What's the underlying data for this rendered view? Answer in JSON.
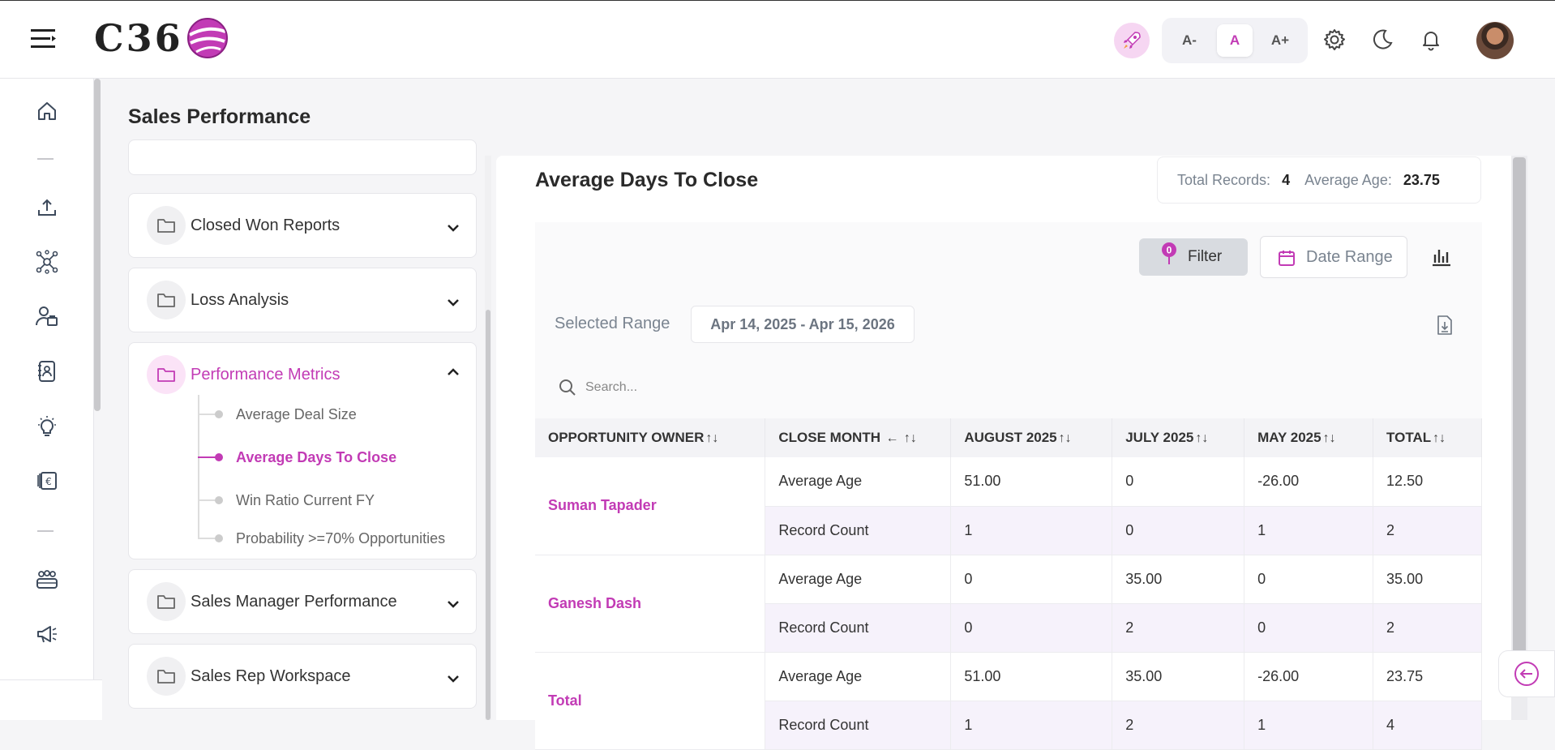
{
  "app": {
    "logo_text": "C36"
  },
  "header": {
    "font_small": "A-",
    "font_normal": "A",
    "font_large": "A+"
  },
  "page": {
    "title": "Sales Performance"
  },
  "menu": {
    "groups": [
      {
        "label": "Closed Won Reports"
      },
      {
        "label": "Loss Analysis"
      },
      {
        "label": "Performance Metrics"
      },
      {
        "label": "Sales Manager Performance"
      },
      {
        "label": "Sales Rep Workspace"
      }
    ],
    "sub_items": [
      {
        "label": "Average Deal Size"
      },
      {
        "label": "Average Days To Close"
      },
      {
        "label": "Win Ratio Current FY"
      },
      {
        "label": "Probability >=70% Opportunities"
      }
    ]
  },
  "report": {
    "title": "Average Days To Close",
    "total_records_label": "Total Records:",
    "total_records_value": "4",
    "average_age_label": "Average Age:",
    "average_age_value": "23.75",
    "filter_label": "Filter",
    "filter_count": "0",
    "date_range_label": "Date Range",
    "selected_range_label": "Selected Range",
    "selected_range_value": "Apr 14, 2025 - Apr 15, 2026",
    "search_placeholder": "Search..."
  },
  "table": {
    "headers": {
      "owner": "OPPORTUNITY OWNER",
      "close_month": "CLOSE MONTH",
      "aug": "AUGUST 2025",
      "jul": "JULY 2025",
      "may": "MAY 2025",
      "total": "TOTAL"
    },
    "groups": [
      {
        "owner": "Suman Tapader",
        "rows": [
          {
            "metric": "Average Age",
            "aug": "51.00",
            "jul": "0",
            "may": "-26.00",
            "total": "12.50"
          },
          {
            "metric": "Record Count",
            "aug": "1",
            "jul": "0",
            "may": "1",
            "total": "2"
          }
        ]
      },
      {
        "owner": "Ganesh Dash",
        "rows": [
          {
            "metric": "Average Age",
            "aug": "0",
            "jul": "35.00",
            "may": "0",
            "total": "35.00"
          },
          {
            "metric": "Record Count",
            "aug": "0",
            "jul": "2",
            "may": "0",
            "total": "2"
          }
        ]
      },
      {
        "owner": "Total",
        "rows": [
          {
            "metric": "Average Age",
            "aug": "51.00",
            "jul": "35.00",
            "may": "-26.00",
            "total": "23.75"
          },
          {
            "metric": "Record Count",
            "aug": "1",
            "jul": "2",
            "may": "1",
            "total": "4"
          }
        ]
      }
    ]
  },
  "colors": {
    "accent": "#c23bb5",
    "muted": "#7a8490"
  }
}
